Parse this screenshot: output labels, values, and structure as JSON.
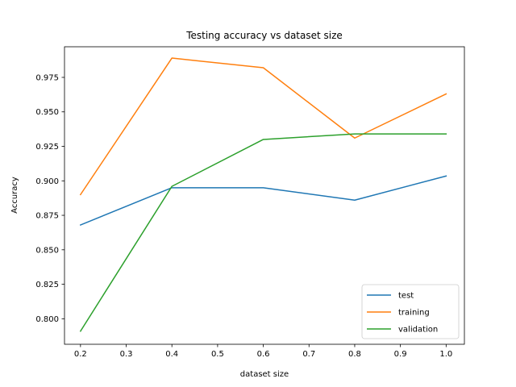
{
  "chart_data": {
    "type": "line",
    "title": "Testing accuracy vs dataset size",
    "xlabel": "dataset size",
    "ylabel": "Accuracy",
    "x": [
      0.2,
      0.4,
      0.6,
      0.8,
      1.0
    ],
    "xlim": [
      0.165,
      1.04
    ],
    "ylim": [
      0.7815,
      0.9972
    ],
    "xticks": [
      0.2,
      0.3,
      0.4,
      0.5,
      0.6,
      0.7,
      0.8,
      0.9,
      1.0
    ],
    "xtick_labels": [
      "0.2",
      "0.3",
      "0.4",
      "0.5",
      "0.6",
      "0.7",
      "0.8",
      "0.9",
      "1.0"
    ],
    "yticks": [
      0.8,
      0.825,
      0.85,
      0.875,
      0.9,
      0.925,
      0.95,
      0.975
    ],
    "ytick_labels": [
      "0.800",
      "0.825",
      "0.850",
      "0.875",
      "0.900",
      "0.925",
      "0.950",
      "0.975"
    ],
    "grid": false,
    "legend_position": "bottom-right",
    "series": [
      {
        "name": "test",
        "color": "#1f77b4",
        "values": [
          0.868,
          0.895,
          0.895,
          0.886,
          0.9035
        ]
      },
      {
        "name": "training",
        "color": "#ff7f0e",
        "values": [
          0.89,
          0.989,
          0.982,
          0.931,
          0.963
        ]
      },
      {
        "name": "validation",
        "color": "#2ca02c",
        "values": [
          0.791,
          0.896,
          0.93,
          0.934,
          0.934
        ]
      }
    ]
  }
}
